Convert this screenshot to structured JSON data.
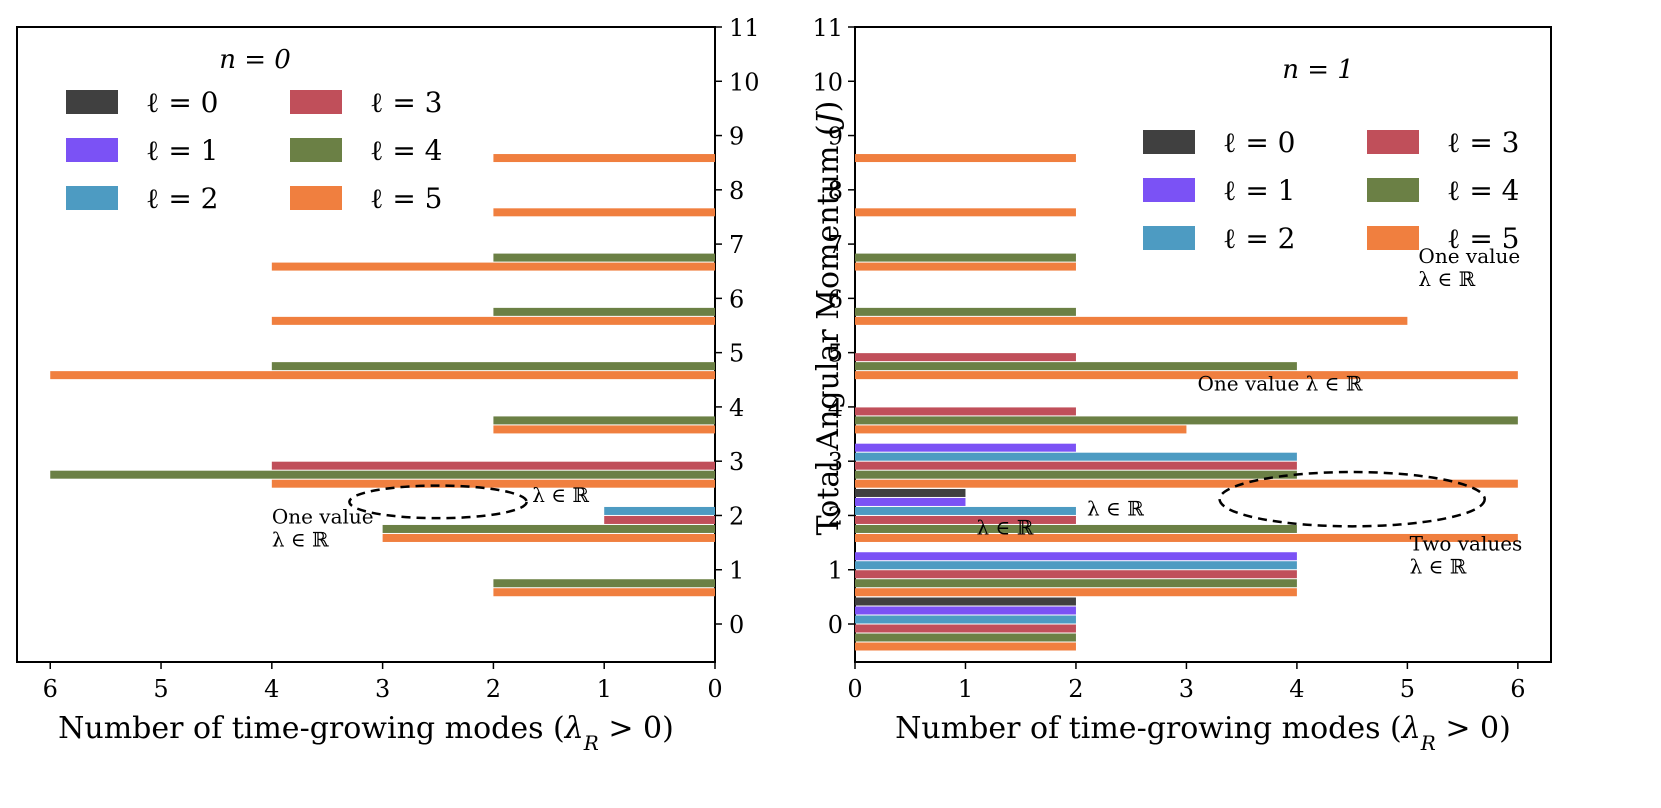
{
  "colors": {
    "l0": "#404040",
    "l1": "#7b52f5",
    "l2": "#4d9bc2",
    "l3": "#c04f5a",
    "l4": "#6b8045",
    "l5": "#f07f3f"
  },
  "shared_axis": {
    "ylabel": "Total Angular Momentum (J)",
    "ylabel_plain": "Total Angular Momentum (",
    "ylabel_sym": "J",
    "ylabel_close": ")"
  },
  "chart_data": [
    {
      "type": "bar",
      "orientation": "horizontal",
      "title": "",
      "legend_title": "n = 0",
      "xlabel": "Number of time-growing modes (λR > 0)",
      "xlabel_main": "Number of time-growing modes (",
      "xlabel_sym": "λ",
      "xlabel_sub": "R",
      "xlabel_tail": " > 0)",
      "xlim": [
        6.3,
        0
      ],
      "ylim": [
        -0.7,
        11
      ],
      "xticks": [
        6,
        5,
        4,
        3,
        2,
        1,
        0
      ],
      "yticks": [
        0,
        1,
        2,
        3,
        4,
        5,
        6,
        7,
        8,
        9,
        10,
        11
      ],
      "yaxis_side": "right",
      "legend_placement": "top-left",
      "legend": [
        {
          "key": "l0",
          "label": "ℓ = 0"
        },
        {
          "key": "l1",
          "label": "ℓ = 1"
        },
        {
          "key": "l2",
          "label": "ℓ = 2"
        },
        {
          "key": "l3",
          "label": "ℓ = 3"
        },
        {
          "key": "l4",
          "label": "ℓ = 4"
        },
        {
          "key": "l5",
          "label": "ℓ = 5"
        }
      ],
      "bars": [
        {
          "J": 1,
          "l": 4,
          "value": 2
        },
        {
          "J": 1,
          "l": 5,
          "value": 2
        },
        {
          "J": 2,
          "l": 2,
          "value": 1
        },
        {
          "J": 2,
          "l": 3,
          "value": 1
        },
        {
          "J": 2,
          "l": 4,
          "value": 3
        },
        {
          "J": 2,
          "l": 5,
          "value": 3
        },
        {
          "J": 3,
          "l": 3,
          "value": 4
        },
        {
          "J": 3,
          "l": 4,
          "value": 6
        },
        {
          "J": 3,
          "l": 5,
          "value": 4
        },
        {
          "J": 4,
          "l": 4,
          "value": 2
        },
        {
          "J": 4,
          "l": 5,
          "value": 2
        },
        {
          "J": 5,
          "l": 4,
          "value": 4
        },
        {
          "J": 5,
          "l": 5,
          "value": 6
        },
        {
          "J": 6,
          "l": 4,
          "value": 2
        },
        {
          "J": 6,
          "l": 5,
          "value": 4
        },
        {
          "J": 7,
          "l": 4,
          "value": 2
        },
        {
          "J": 7,
          "l": 5,
          "value": 4
        },
        {
          "J": 8,
          "l": 5,
          "value": 2
        },
        {
          "J": 9,
          "l": 5,
          "value": 2
        }
      ],
      "annotations": [
        {
          "line1": "One value",
          "line2": "λ ∈ ℝ",
          "x": 4.0,
          "y": 1.85,
          "anchor": "start"
        },
        {
          "line1": "",
          "line2": "λ ∈ ℝ",
          "x": 1.65,
          "y": 2.25,
          "anchor": "start"
        }
      ],
      "ellipses": [
        {
          "cx": 2.5,
          "cy": 2.25,
          "rx": 0.8,
          "ry": 0.3
        }
      ]
    },
    {
      "type": "bar",
      "orientation": "horizontal",
      "title": "",
      "legend_title": "n = 1",
      "xlabel": "Number of time-growing modes (λR > 0)",
      "xlabel_main": "Number of time-growing modes (",
      "xlabel_sym": "λ",
      "xlabel_sub": "R",
      "xlabel_tail": " > 0)",
      "xlim": [
        0,
        6.3
      ],
      "ylim": [
        -0.7,
        11
      ],
      "xticks": [
        0,
        1,
        2,
        3,
        4,
        5,
        6
      ],
      "yticks": [
        0,
        1,
        2,
        3,
        4,
        5,
        6,
        7,
        8,
        9,
        10,
        11
      ],
      "yaxis_side": "left",
      "legend_placement": "top-right",
      "legend": [
        {
          "key": "l0",
          "label": "ℓ = 0"
        },
        {
          "key": "l1",
          "label": "ℓ = 1"
        },
        {
          "key": "l2",
          "label": "ℓ = 2"
        },
        {
          "key": "l3",
          "label": "ℓ = 3"
        },
        {
          "key": "l4",
          "label": "ℓ = 4"
        },
        {
          "key": "l5",
          "label": "ℓ = 5"
        }
      ],
      "bars": [
        {
          "J": 0,
          "l": 0,
          "value": 2
        },
        {
          "J": 0,
          "l": 1,
          "value": 2
        },
        {
          "J": 0,
          "l": 2,
          "value": 2
        },
        {
          "J": 0,
          "l": 3,
          "value": 2
        },
        {
          "J": 0,
          "l": 4,
          "value": 2
        },
        {
          "J": 0,
          "l": 5,
          "value": 2
        },
        {
          "J": 1,
          "l": 1,
          "value": 4
        },
        {
          "J": 1,
          "l": 2,
          "value": 4
        },
        {
          "J": 1,
          "l": 3,
          "value": 4
        },
        {
          "J": 1,
          "l": 4,
          "value": 4
        },
        {
          "J": 1,
          "l": 5,
          "value": 4
        },
        {
          "J": 2,
          "l": 0,
          "value": 1
        },
        {
          "J": 2,
          "l": 1,
          "value": 1
        },
        {
          "J": 2,
          "l": 2,
          "value": 2
        },
        {
          "J": 2,
          "l": 3,
          "value": 2
        },
        {
          "J": 2,
          "l": 4,
          "value": 4
        },
        {
          "J": 2,
          "l": 5,
          "value": 6
        },
        {
          "J": 3,
          "l": 1,
          "value": 2
        },
        {
          "J": 3,
          "l": 2,
          "value": 4
        },
        {
          "J": 3,
          "l": 3,
          "value": 4
        },
        {
          "J": 3,
          "l": 4,
          "value": 4
        },
        {
          "J": 3,
          "l": 5,
          "value": 6
        },
        {
          "J": 4,
          "l": 3,
          "value": 2
        },
        {
          "J": 4,
          "l": 4,
          "value": 6
        },
        {
          "J": 4,
          "l": 5,
          "value": 3
        },
        {
          "J": 5,
          "l": 3,
          "value": 2
        },
        {
          "J": 5,
          "l": 4,
          "value": 4
        },
        {
          "J": 5,
          "l": 5,
          "value": 6
        },
        {
          "J": 6,
          "l": 4,
          "value": 2
        },
        {
          "J": 6,
          "l": 5,
          "value": 5
        },
        {
          "J": 7,
          "l": 4,
          "value": 2
        },
        {
          "J": 7,
          "l": 5,
          "value": 2
        },
        {
          "J": 8,
          "l": 5,
          "value": 2
        },
        {
          "J": 9,
          "l": 5,
          "value": 2
        }
      ],
      "annotations": [
        {
          "line1": "",
          "line2": "λ ∈ ℝ",
          "x": 1.1,
          "y": 1.65,
          "anchor": "start"
        },
        {
          "line1": "",
          "line2": "λ ∈ ℝ",
          "x": 2.1,
          "y": 2.0,
          "anchor": "start"
        },
        {
          "line1": "One value λ ∈ ℝ",
          "line2": "",
          "x": 3.1,
          "y": 4.3,
          "anchor": "start"
        },
        {
          "line1": "One value",
          "line2": "λ ∈ ℝ",
          "x": 5.1,
          "y": 6.65,
          "anchor": "start"
        },
        {
          "line1": "Two values",
          "line2": "λ ∈ ℝ",
          "x": 5.02,
          "y": 1.35,
          "anchor": "start"
        }
      ],
      "ellipses": [
        {
          "cx": 4.5,
          "cy": 2.3,
          "rx": 1.2,
          "ry": 0.5
        }
      ]
    }
  ]
}
